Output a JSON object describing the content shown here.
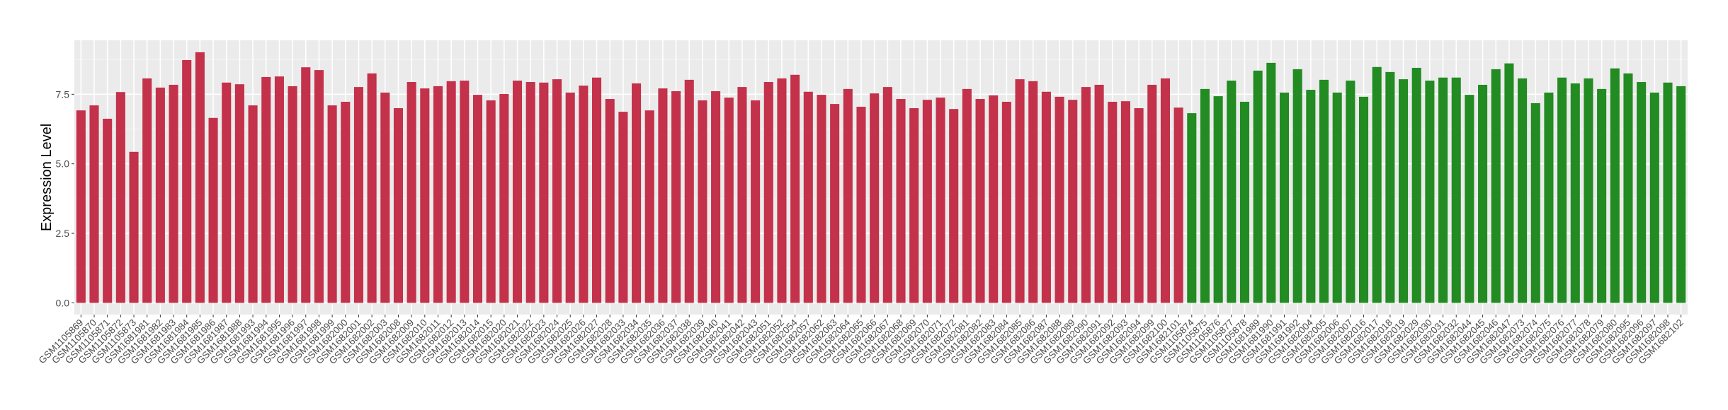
{
  "chart_data": {
    "type": "bar",
    "title": "",
    "xlabel": "",
    "ylabel": "Expression Level",
    "ylim": [
      -0.42,
      9.44
    ],
    "yticks": [
      "0.0",
      "2.5",
      "5.0",
      "7.5"
    ],
    "ytick_values": [
      0,
      2.5,
      5,
      7.5
    ],
    "grid": true,
    "legend": "none",
    "colors": {
      "group1": "#C3314A",
      "group2": "#228B22",
      "panel": "#EBEBEB",
      "grid": "#FFFFFF"
    },
    "categories": [
      "GSM1105869",
      "GSM1105870",
      "GSM1105871",
      "GSM1105872",
      "GSM1105873",
      "GSM1681981",
      "GSM1681982",
      "GSM1681983",
      "GSM1681984",
      "GSM1681985",
      "GSM1681986",
      "GSM1681987",
      "GSM1681988",
      "GSM1681993",
      "GSM1681994",
      "GSM1681995",
      "GSM1681996",
      "GSM1681997",
      "GSM1681998",
      "GSM1681999",
      "GSM1682000",
      "GSM1682001",
      "GSM1682002",
      "GSM1682003",
      "GSM1682008",
      "GSM1682009",
      "GSM1682010",
      "GSM1682011",
      "GSM1682012",
      "GSM1682013",
      "GSM1682014",
      "GSM1682015",
      "GSM1682020",
      "GSM1682021",
      "GSM1682022",
      "GSM1682023",
      "GSM1682024",
      "GSM1682025",
      "GSM1682026",
      "GSM1682027",
      "GSM1682028",
      "GSM1682033",
      "GSM1682034",
      "GSM1682035",
      "GSM1682036",
      "GSM1682037",
      "GSM1682038",
      "GSM1682039",
      "GSM1682040",
      "GSM1682041",
      "GSM1682042",
      "GSM1682043",
      "GSM1682051",
      "GSM1682052",
      "GSM1682054",
      "GSM1682057",
      "GSM1682062",
      "GSM1682063",
      "GSM1682064",
      "GSM1682065",
      "GSM1682066",
      "GSM1682067",
      "GSM1682068",
      "GSM1682069",
      "GSM1682070",
      "GSM1682071",
      "GSM1682072",
      "GSM1682081",
      "GSM1682082",
      "GSM1682083",
      "GSM1682084",
      "GSM1682085",
      "GSM1682086",
      "GSM1682087",
      "GSM1682088",
      "GSM1682089",
      "GSM1682090",
      "GSM1682091",
      "GSM1682092",
      "GSM1682093",
      "GSM1682094",
      "GSM1682099",
      "GSM1682100",
      "GSM1682101",
      "GSM1105874",
      "GSM1105875",
      "GSM1105876",
      "GSM1105877",
      "GSM1105878",
      "GSM1681989",
      "GSM1681990",
      "GSM1681991",
      "GSM1681992",
      "GSM1682004",
      "GSM1682005",
      "GSM1682006",
      "GSM1682007",
      "GSM1682016",
      "GSM1682017",
      "GSM1682018",
      "GSM1682019",
      "GSM1682029",
      "GSM1682030",
      "GSM1682031",
      "GSM1682032",
      "GSM1682044",
      "GSM1682045",
      "GSM1682046",
      "GSM1682047",
      "GSM1682073",
      "GSM1682074",
      "GSM1682075",
      "GSM1682076",
      "GSM1682077",
      "GSM1682078",
      "GSM1682079",
      "GSM1682080",
      "GSM1682095",
      "GSM1682096",
      "GSM1682097",
      "GSM1682098",
      "GSM1682102"
    ],
    "values": [
      6.92,
      7.1,
      6.62,
      7.58,
      5.43,
      8.07,
      7.74,
      7.84,
      8.73,
      9.01,
      6.65,
      7.92,
      7.86,
      7.1,
      8.12,
      8.14,
      7.79,
      8.47,
      8.37,
      7.1,
      7.23,
      7.76,
      8.25,
      7.56,
      7.0,
      7.94,
      7.71,
      7.79,
      7.97,
      7.99,
      7.48,
      7.28,
      7.51,
      7.99,
      7.94,
      7.92,
      8.04,
      7.56,
      7.81,
      8.1,
      7.33,
      6.87,
      7.89,
      6.92,
      7.71,
      7.61,
      8.02,
      7.28,
      7.61,
      7.38,
      7.76,
      7.28,
      7.94,
      8.07,
      8.2,
      7.59,
      7.48,
      7.15,
      7.69,
      7.05,
      7.53,
      7.76,
      7.33,
      7.0,
      7.3,
      7.38,
      6.97,
      7.69,
      7.33,
      7.46,
      7.23,
      8.04,
      7.97,
      7.59,
      7.41,
      7.3,
      7.76,
      7.84,
      7.23,
      7.25,
      7.0,
      7.84,
      8.07,
      7.02,
      6.82,
      7.69,
      7.43,
      7.99,
      7.23,
      8.35,
      8.63,
      7.56,
      8.4,
      7.66,
      8.02,
      7.56,
      7.99,
      7.41,
      8.48,
      8.3,
      8.04,
      8.45,
      7.99,
      8.1,
      8.1,
      7.48,
      7.84,
      8.4,
      8.61,
      8.07,
      7.18,
      7.56,
      8.1,
      7.89,
      8.07,
      7.69,
      8.43,
      8.25,
      7.94,
      7.56,
      7.92,
      7.79
    ],
    "groups": [
      "group1",
      "group1",
      "group1",
      "group1",
      "group1",
      "group1",
      "group1",
      "group1",
      "group1",
      "group1",
      "group1",
      "group1",
      "group1",
      "group1",
      "group1",
      "group1",
      "group1",
      "group1",
      "group1",
      "group1",
      "group1",
      "group1",
      "group1",
      "group1",
      "group1",
      "group1",
      "group1",
      "group1",
      "group1",
      "group1",
      "group1",
      "group1",
      "group1",
      "group1",
      "group1",
      "group1",
      "group1",
      "group1",
      "group1",
      "group1",
      "group1",
      "group1",
      "group1",
      "group1",
      "group1",
      "group1",
      "group1",
      "group1",
      "group1",
      "group1",
      "group1",
      "group1",
      "group1",
      "group1",
      "group1",
      "group1",
      "group1",
      "group1",
      "group1",
      "group1",
      "group1",
      "group1",
      "group1",
      "group1",
      "group1",
      "group1",
      "group1",
      "group1",
      "group1",
      "group1",
      "group1",
      "group1",
      "group1",
      "group1",
      "group1",
      "group1",
      "group1",
      "group1",
      "group1",
      "group1",
      "group1",
      "group1",
      "group1",
      "group1",
      "group2",
      "group2",
      "group2",
      "group2",
      "group2",
      "group2",
      "group2",
      "group2",
      "group2",
      "group2",
      "group2",
      "group2",
      "group2",
      "group2",
      "group2",
      "group2",
      "group2",
      "group2",
      "group2",
      "group2",
      "group2",
      "group2",
      "group2",
      "group2",
      "group2",
      "group2",
      "group2",
      "group2",
      "group2",
      "group2",
      "group2",
      "group2",
      "group2",
      "group2",
      "group2",
      "group2",
      "group2",
      "group2"
    ]
  }
}
